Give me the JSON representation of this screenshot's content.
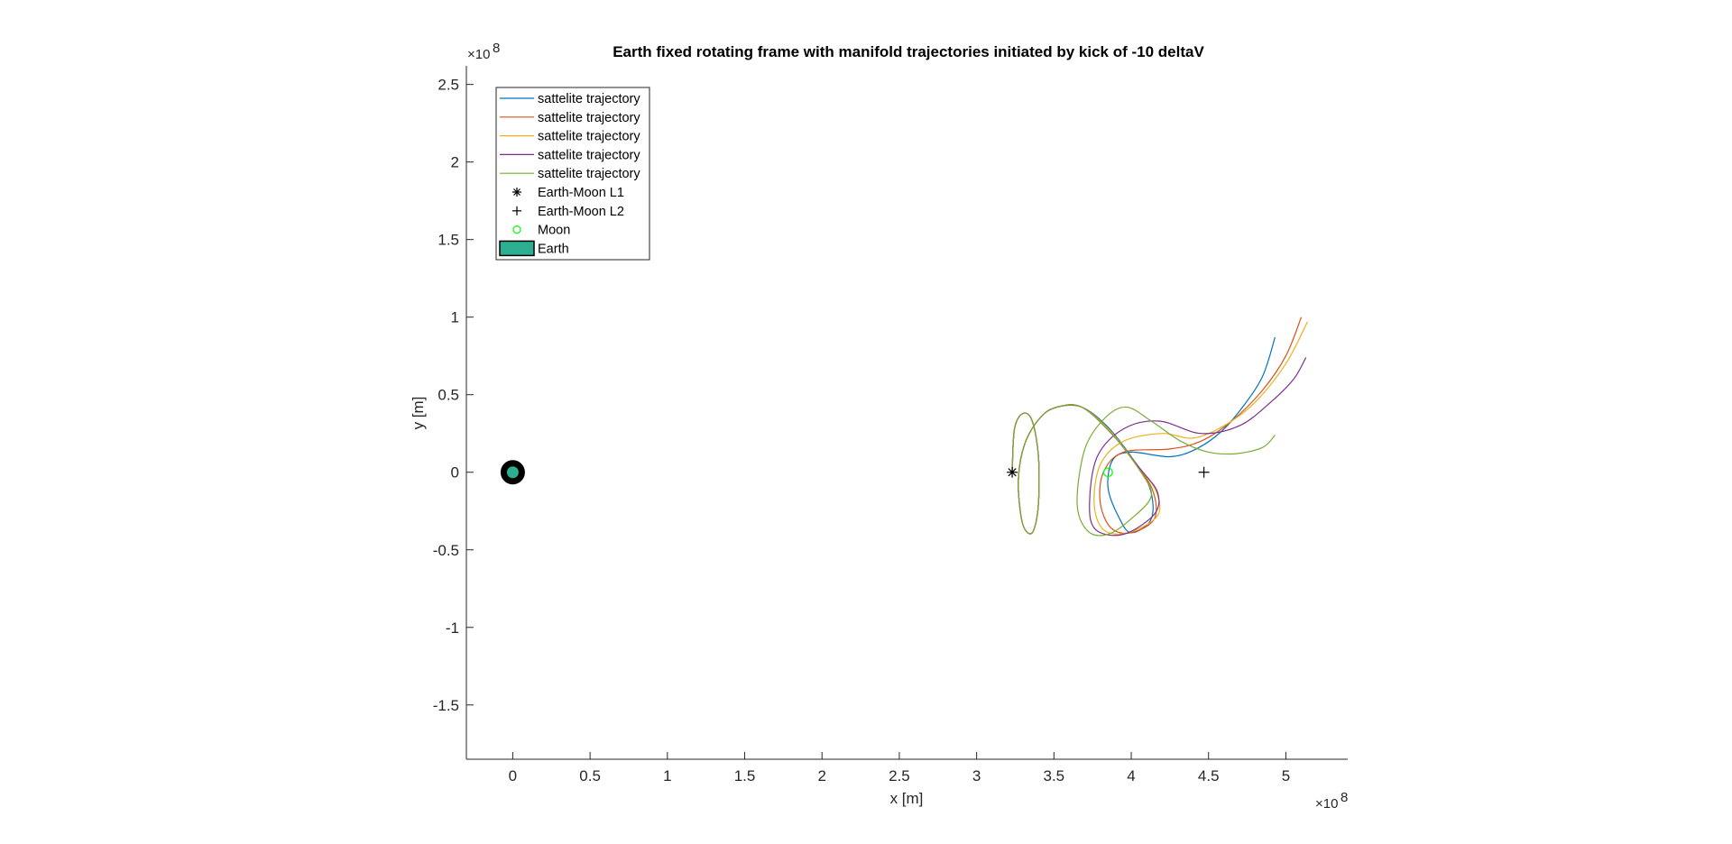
{
  "chart_data": {
    "type": "line",
    "title": "Earth fixed rotating frame with manifold trajectories initiated by kick of -10 deltaV",
    "xlabel": "x [m]",
    "ylabel": "y [m]",
    "x_exponent_base": "×10",
    "x_exponent_power": "8",
    "y_exponent_base": "×10",
    "y_exponent_power": "8",
    "xlim": [
      -30000000,
      540000000
    ],
    "ylim": [
      -185000000,
      262000000
    ],
    "grid": false,
    "legend_position": "top-left",
    "xticks": [
      {
        "value": 0,
        "label": "0"
      },
      {
        "value": 50000000,
        "label": "0.5"
      },
      {
        "value": 100000000,
        "label": "1"
      },
      {
        "value": 150000000,
        "label": "1.5"
      },
      {
        "value": 200000000,
        "label": "2"
      },
      {
        "value": 250000000,
        "label": "2.5"
      },
      {
        "value": 300000000,
        "label": "3"
      },
      {
        "value": 350000000,
        "label": "3.5"
      },
      {
        "value": 400000000,
        "label": "4"
      },
      {
        "value": 450000000,
        "label": "4.5"
      },
      {
        "value": 500000000,
        "label": "5"
      }
    ],
    "yticks": [
      {
        "value": 250000000,
        "label": "2.5"
      },
      {
        "value": 200000000,
        "label": "2"
      },
      {
        "value": 150000000,
        "label": "1.5"
      },
      {
        "value": 100000000,
        "label": "1"
      },
      {
        "value": 50000000,
        "label": "0.5"
      },
      {
        "value": 0,
        "label": "0"
      },
      {
        "value": -50000000,
        "label": "-0.5"
      },
      {
        "value": -100000000,
        "label": "-1"
      },
      {
        "value": -150000000,
        "label": "-1.5"
      }
    ],
    "series": [
      {
        "name": "sattelite trajectory",
        "color": "#0072BD",
        "points": [
          [
            323000000,
            0
          ],
          [
            324500000,
            28000000
          ],
          [
            330000000,
            38000000
          ],
          [
            336000000,
            33000000
          ],
          [
            340000000,
            10000000
          ],
          [
            340000000,
            -20000000
          ],
          [
            337000000,
            -37000000
          ],
          [
            333000000,
            -39000000
          ],
          [
            329000000,
            -30000000
          ],
          [
            327000000,
            -5000000
          ],
          [
            331000000,
            18000000
          ],
          [
            341000000,
            35000000
          ],
          [
            352000000,
            42000000
          ],
          [
            368000000,
            42000000
          ],
          [
            384000000,
            30000000
          ],
          [
            400000000,
            10000000
          ],
          [
            412000000,
            -10000000
          ],
          [
            413000000,
            -30000000
          ],
          [
            400000000,
            -39000000
          ],
          [
            392000000,
            -29000000
          ],
          [
            385000000,
            -10000000
          ],
          [
            388000000,
            8000000
          ],
          [
            400000000,
            13000000
          ],
          [
            425000000,
            10000000
          ],
          [
            442000000,
            15000000
          ],
          [
            458000000,
            26000000
          ],
          [
            472000000,
            42000000
          ],
          [
            485000000,
            62000000
          ],
          [
            493000000,
            87000000
          ]
        ]
      },
      {
        "name": "sattelite trajectory",
        "color": "#D95319",
        "points": [
          [
            323000000,
            0
          ],
          [
            324500000,
            28000000
          ],
          [
            330000000,
            38000000
          ],
          [
            336000000,
            33000000
          ],
          [
            340000000,
            10000000
          ],
          [
            340000000,
            -20000000
          ],
          [
            337000000,
            -37000000
          ],
          [
            333000000,
            -39000000
          ],
          [
            329000000,
            -30000000
          ],
          [
            327000000,
            -5000000
          ],
          [
            331000000,
            18000000
          ],
          [
            341000000,
            35000000
          ],
          [
            352000000,
            42000000
          ],
          [
            368000000,
            42000000
          ],
          [
            385000000,
            28000000
          ],
          [
            403000000,
            5000000
          ],
          [
            414000000,
            -12000000
          ],
          [
            415000000,
            -30000000
          ],
          [
            400000000,
            -39000000
          ],
          [
            387000000,
            -36000000
          ],
          [
            380000000,
            -20000000
          ],
          [
            382000000,
            0
          ],
          [
            395000000,
            13000000
          ],
          [
            425000000,
            15000000
          ],
          [
            445000000,
            20000000
          ],
          [
            465000000,
            33000000
          ],
          [
            485000000,
            53000000
          ],
          [
            500000000,
            75000000
          ],
          [
            510000000,
            100000000
          ]
        ]
      },
      {
        "name": "sattelite trajectory",
        "color": "#EDB120",
        "points": [
          [
            323000000,
            0
          ],
          [
            324500000,
            28000000
          ],
          [
            330000000,
            38000000
          ],
          [
            336000000,
            33000000
          ],
          [
            340000000,
            10000000
          ],
          [
            340000000,
            -20000000
          ],
          [
            337000000,
            -37000000
          ],
          [
            333000000,
            -39000000
          ],
          [
            329000000,
            -30000000
          ],
          [
            327000000,
            -5000000
          ],
          [
            331000000,
            18000000
          ],
          [
            341000000,
            35000000
          ],
          [
            352000000,
            42000000
          ],
          [
            368000000,
            42000000
          ],
          [
            387000000,
            26000000
          ],
          [
            405000000,
            3000000
          ],
          [
            416000000,
            -12000000
          ],
          [
            417000000,
            -28000000
          ],
          [
            398000000,
            -39000000
          ],
          [
            382000000,
            -37000000
          ],
          [
            376000000,
            -20000000
          ],
          [
            380000000,
            5000000
          ],
          [
            395000000,
            20000000
          ],
          [
            420000000,
            25000000
          ],
          [
            440000000,
            22000000
          ],
          [
            460000000,
            30000000
          ],
          [
            480000000,
            45000000
          ],
          [
            500000000,
            70000000
          ],
          [
            514000000,
            97000000
          ]
        ]
      },
      {
        "name": "sattelite trajectory",
        "color": "#7E2F8E",
        "points": [
          [
            323000000,
            0
          ],
          [
            324500000,
            28000000
          ],
          [
            330000000,
            38000000
          ],
          [
            336000000,
            33000000
          ],
          [
            340000000,
            10000000
          ],
          [
            340000000,
            -20000000
          ],
          [
            337000000,
            -37000000
          ],
          [
            333000000,
            -39000000
          ],
          [
            329000000,
            -30000000
          ],
          [
            327000000,
            -5000000
          ],
          [
            331000000,
            18000000
          ],
          [
            341000000,
            35000000
          ],
          [
            352000000,
            42000000
          ],
          [
            368000000,
            42000000
          ],
          [
            388000000,
            24000000
          ],
          [
            406000000,
            2000000
          ],
          [
            417000000,
            -13000000
          ],
          [
            415000000,
            -27000000
          ],
          [
            395000000,
            -40000000
          ],
          [
            377000000,
            -37000000
          ],
          [
            373000000,
            -20000000
          ],
          [
            378000000,
            10000000
          ],
          [
            395000000,
            28000000
          ],
          [
            418000000,
            33000000
          ],
          [
            445000000,
            25000000
          ],
          [
            470000000,
            30000000
          ],
          [
            490000000,
            45000000
          ],
          [
            505000000,
            60000000
          ],
          [
            513000000,
            74000000
          ]
        ]
      },
      {
        "name": "sattelite trajectory",
        "color": "#77AC30",
        "points": [
          [
            323000000,
            0
          ],
          [
            324500000,
            28000000
          ],
          [
            330000000,
            38000000
          ],
          [
            336000000,
            33000000
          ],
          [
            340000000,
            10000000
          ],
          [
            340000000,
            -20000000
          ],
          [
            337000000,
            -37000000
          ],
          [
            333000000,
            -39000000
          ],
          [
            329000000,
            -30000000
          ],
          [
            327000000,
            -5000000
          ],
          [
            331000000,
            18000000
          ],
          [
            341000000,
            35000000
          ],
          [
            352000000,
            42000000
          ],
          [
            368000000,
            42000000
          ],
          [
            388000000,
            24000000
          ],
          [
            405000000,
            2000000
          ],
          [
            413000000,
            -15000000
          ],
          [
            400000000,
            -30000000
          ],
          [
            385000000,
            -40000000
          ],
          [
            372000000,
            -38000000
          ],
          [
            365000000,
            -20000000
          ],
          [
            370000000,
            15000000
          ],
          [
            383000000,
            35000000
          ],
          [
            397000000,
            42000000
          ],
          [
            413000000,
            33000000
          ],
          [
            432000000,
            20000000
          ],
          [
            450000000,
            13000000
          ],
          [
            468000000,
            12000000
          ],
          [
            485000000,
            16000000
          ],
          [
            493000000,
            24000000
          ]
        ]
      }
    ],
    "markers": [
      {
        "name": "Earth-Moon L1",
        "symbol": "asterisk",
        "x": 323000000,
        "y": 0,
        "color": "#000000"
      },
      {
        "name": "Earth-Moon L2",
        "symbol": "plus",
        "x": 447000000,
        "y": 0,
        "color": "#000000"
      },
      {
        "name": "Moon",
        "symbol": "circle",
        "x": 385000000,
        "y": 0,
        "color": "#00FF00"
      }
    ],
    "patches": [
      {
        "name": "Earth",
        "x": 0,
        "y": 0,
        "radius": 6371000,
        "face_color": "#2BAF90",
        "edge_color": "#000000"
      }
    ],
    "legend": [
      {
        "label": "sattelite trajectory",
        "kind": "line",
        "color": "#0072BD"
      },
      {
        "label": "sattelite trajectory",
        "kind": "line",
        "color": "#D95319"
      },
      {
        "label": "sattelite trajectory",
        "kind": "line",
        "color": "#EDB120"
      },
      {
        "label": "sattelite trajectory",
        "kind": "line",
        "color": "#7E2F8E"
      },
      {
        "label": "sattelite trajectory",
        "kind": "line",
        "color": "#77AC30"
      },
      {
        "label": "Earth-Moon L1",
        "kind": "asterisk",
        "color": "#000000"
      },
      {
        "label": "Earth-Moon L2",
        "kind": "plus",
        "color": "#000000"
      },
      {
        "label": "Moon",
        "kind": "circle",
        "color": "#00FF00"
      },
      {
        "label": "Earth",
        "kind": "patch",
        "color": "#2BAF90"
      }
    ]
  }
}
